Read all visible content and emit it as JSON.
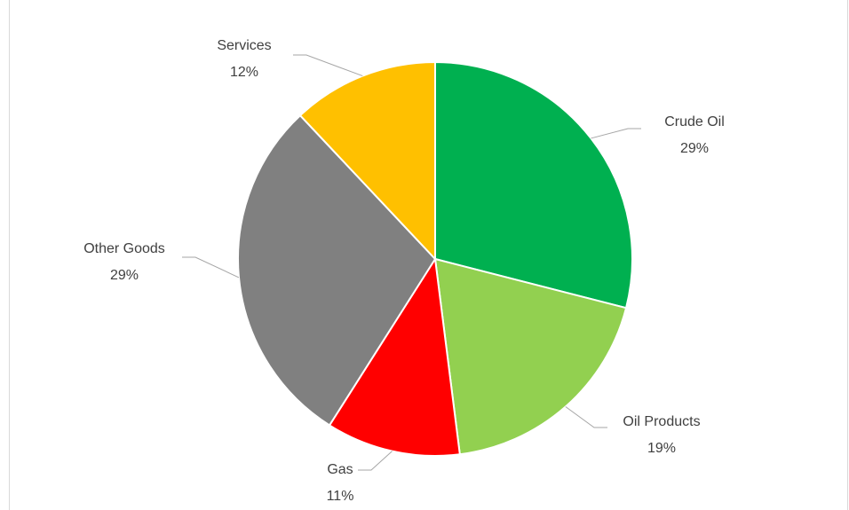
{
  "chart_data": {
    "type": "pie",
    "categories": [
      "Crude Oil",
      "Oil Products",
      "Gas",
      "Other Goods",
      "Services"
    ],
    "values": [
      29,
      19,
      11,
      29,
      12
    ],
    "value_labels": [
      "29%",
      "19%",
      "11%",
      "29%",
      "12%"
    ],
    "colors": [
      "#00b050",
      "#92d050",
      "#ff0000",
      "#808080",
      "#ffc000"
    ]
  }
}
